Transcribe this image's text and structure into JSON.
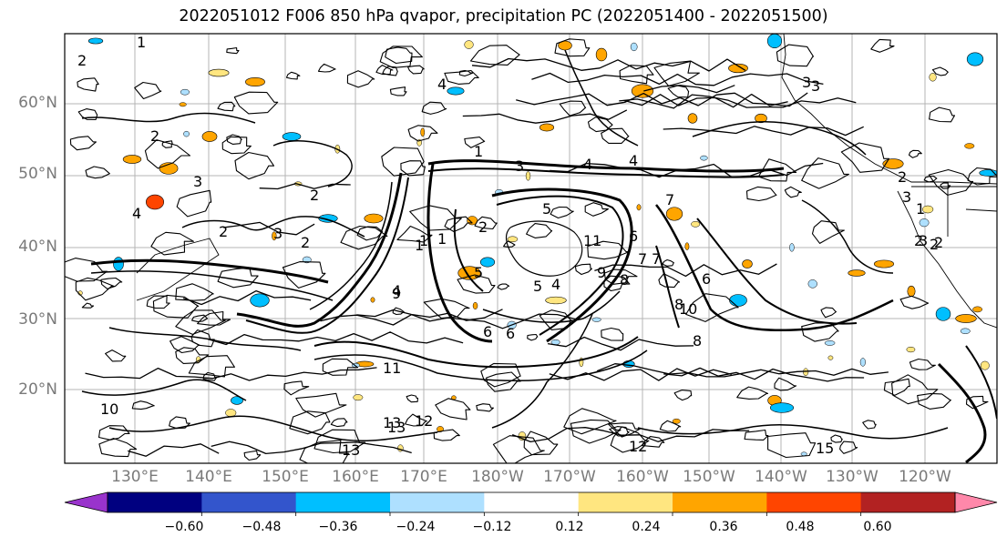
{
  "title": "2022051012 F006 850 hPa qvapor, precipitation PC (2022051400 - 2022051500)",
  "map": {
    "lat_labels": [
      "60°N",
      "50°N",
      "40°N",
      "30°N",
      "20°N"
    ],
    "lon_labels": [
      "130°E",
      "140°E",
      "150°E",
      "160°E",
      "170°E",
      "180°W",
      "170°W",
      "160°W",
      "150°W",
      "140°W",
      "130°W",
      "120°W"
    ],
    "contour_labels": [
      "1",
      "2",
      "2",
      "3",
      "4",
      "2",
      "2",
      "3",
      "2",
      "4",
      "5",
      "6",
      "7",
      "8",
      "9",
      "10",
      "11",
      "12",
      "13",
      "13",
      "8",
      "6",
      "1",
      "1",
      "2",
      "3",
      "4",
      "4",
      "7",
      "9",
      "7",
      "8",
      "6",
      "5",
      "3",
      "2",
      "2",
      "1",
      "10",
      "11",
      "12",
      "13",
      "15",
      "3",
      "4",
      "5",
      "6",
      "3",
      "2",
      "1",
      "3",
      "2",
      "1",
      "4"
    ],
    "colors": {
      "contour": "#000000",
      "grid": "#b4b4b4",
      "coast": "#000000"
    }
  },
  "colorbar": {
    "ticks": [
      "−0.60",
      "−0.48",
      "−0.36",
      "−0.24",
      "−0.12",
      "0.12",
      "0.24",
      "0.36",
      "0.48",
      "0.60"
    ],
    "colors": [
      "#9933cc",
      "#000080",
      "#3355cc",
      "#00bfff",
      "#aee0ff",
      "#ffffff",
      "#ffe680",
      "#ffa500",
      "#ff4500",
      "#b22222",
      "#ff88aa"
    ]
  }
}
